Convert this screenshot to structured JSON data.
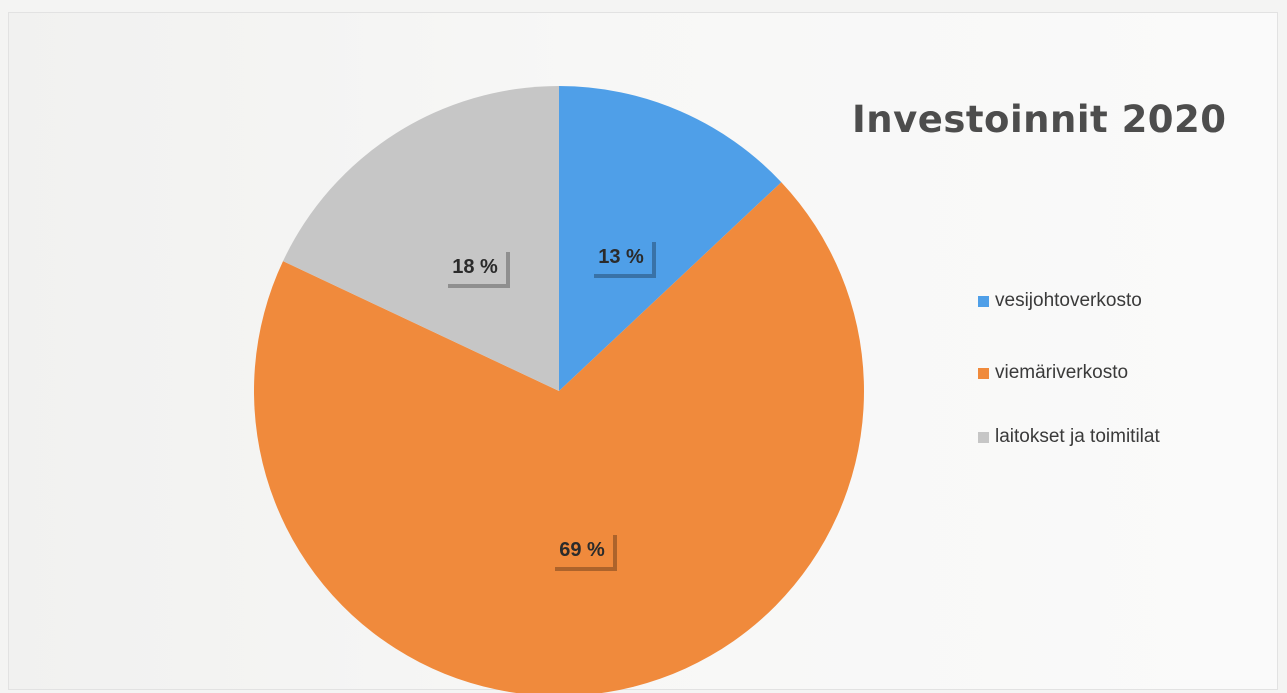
{
  "chart_data": {
    "type": "pie",
    "title": "Investoinnit 2020",
    "slices": [
      {
        "label": "vesijohtoverkosto",
        "value": 13,
        "value_label": "13 %",
        "color": "#4f9fe8"
      },
      {
        "label": "viemäriverkosto",
        "value": 69,
        "value_label": "69 %",
        "color": "#f08a3c"
      },
      {
        "label": "laitokset ja toimitilat",
        "value": 18,
        "value_label": "18 %",
        "color": "#c6c6c6"
      }
    ],
    "legend_position": "right"
  }
}
